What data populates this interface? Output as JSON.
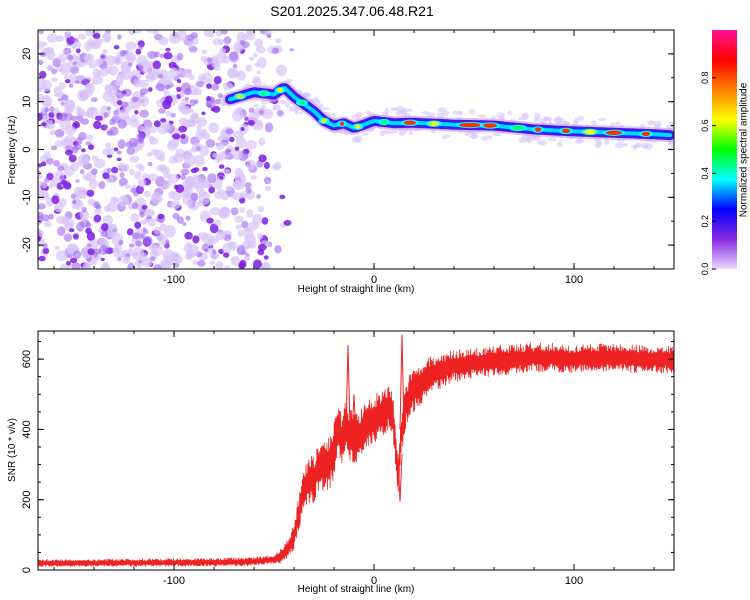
{
  "title": "S201.2025.347.06.48.R21",
  "chart_data": [
    {
      "type": "heatmap",
      "xlabel": "Height of straight line (km)",
      "ylabel": "Frequency (Hz)",
      "xlim": [
        -168,
        150
      ],
      "ylim": [
        -25,
        25
      ],
      "x_ticks": [
        -100,
        0,
        100
      ],
      "x_tick_labels": [
        "-100",
        "0",
        "100"
      ],
      "y_ticks": [
        -20,
        -10,
        0,
        10,
        20
      ],
      "y_tick_labels": [
        "-20",
        "-10",
        "0",
        "10",
        "20"
      ],
      "ridge": {
        "x": [
          -72,
          -60,
          -50,
          -45,
          -40,
          -35,
          -30,
          -25,
          -20,
          -15,
          -10,
          -5,
          0,
          10,
          20,
          40,
          60,
          80,
          90,
          100,
          120,
          140,
          148
        ],
        "y": [
          10.5,
          12,
          11.5,
          13,
          11,
          9.5,
          8,
          6,
          5,
          5.5,
          4.5,
          5.2,
          6,
          5.5,
          5.6,
          5.2,
          5.0,
          4.2,
          4.0,
          3.8,
          3.5,
          3.2,
          3.0
        ]
      },
      "noise_region_x": [
        -168,
        -50
      ],
      "colorbar": {
        "label": "Normalized spectral amplitude",
        "range": [
          0,
          1
        ],
        "ticks": [
          0.0,
          0.2,
          0.4,
          0.6,
          0.8
        ],
        "tick_labels": [
          "0.0",
          "0.2",
          "0.4",
          "0.6",
          "0.8"
        ],
        "colors": [
          "#e8d8ff",
          "#8a2be2",
          "#0000ff",
          "#00ffff",
          "#00ff00",
          "#ffff00",
          "#ff8000",
          "#ff0000",
          "#ff1493"
        ]
      }
    },
    {
      "type": "line",
      "xlabel": "Height of straight line (km)",
      "ylabel": "SNR (10 * v/v)",
      "xlim": [
        -168,
        150
      ],
      "ylim": [
        0,
        680
      ],
      "x_ticks": [
        -100,
        0,
        100
      ],
      "x_tick_labels": [
        "-100",
        "0",
        "100"
      ],
      "y_ticks": [
        0,
        200,
        400,
        600
      ],
      "y_tick_labels": [
        "0",
        "200",
        "400",
        "600"
      ],
      "color": "#ee2222",
      "series": [
        {
          "name": "SNR",
          "x": [
            -168,
            -140,
            -110,
            -80,
            -60,
            -50,
            -45,
            -40,
            -38,
            -35,
            -32,
            -30,
            -28,
            -25,
            -22,
            -20,
            -18,
            -16,
            -14,
            -12,
            -10,
            -8,
            -5,
            0,
            3,
            5,
            8,
            10,
            12,
            14,
            16,
            18,
            20,
            25,
            30,
            40,
            50,
            60,
            70,
            80,
            90,
            100,
            110,
            120,
            130,
            140,
            150
          ],
          "y": [
            20,
            20,
            21,
            22,
            24,
            30,
            45,
            90,
            150,
            230,
            260,
            250,
            300,
            290,
            310,
            340,
            400,
            360,
            420,
            380,
            380,
            370,
            410,
            430,
            440,
            450,
            470,
            410,
            260,
            400,
            470,
            500,
            510,
            540,
            560,
            580,
            590,
            595,
            600,
            605,
            605,
            600,
            605,
            605,
            600,
            600,
            600
          ]
        }
      ],
      "spikes": [
        {
          "x": -13,
          "y": 640
        },
        {
          "x": -10,
          "y": 500
        },
        {
          "x": 14,
          "y": 670
        },
        {
          "x": 13,
          "y": 195
        }
      ],
      "band_halfwidth": [
        {
          "x": -168,
          "w": 10
        },
        {
          "x": -50,
          "w": 12
        },
        {
          "x": -40,
          "w": 40
        },
        {
          "x": -30,
          "w": 75
        },
        {
          "x": -20,
          "w": 80
        },
        {
          "x": 0,
          "w": 70
        },
        {
          "x": 20,
          "w": 60
        },
        {
          "x": 40,
          "w": 45
        },
        {
          "x": 100,
          "w": 40
        },
        {
          "x": 150,
          "w": 40
        }
      ]
    }
  ]
}
